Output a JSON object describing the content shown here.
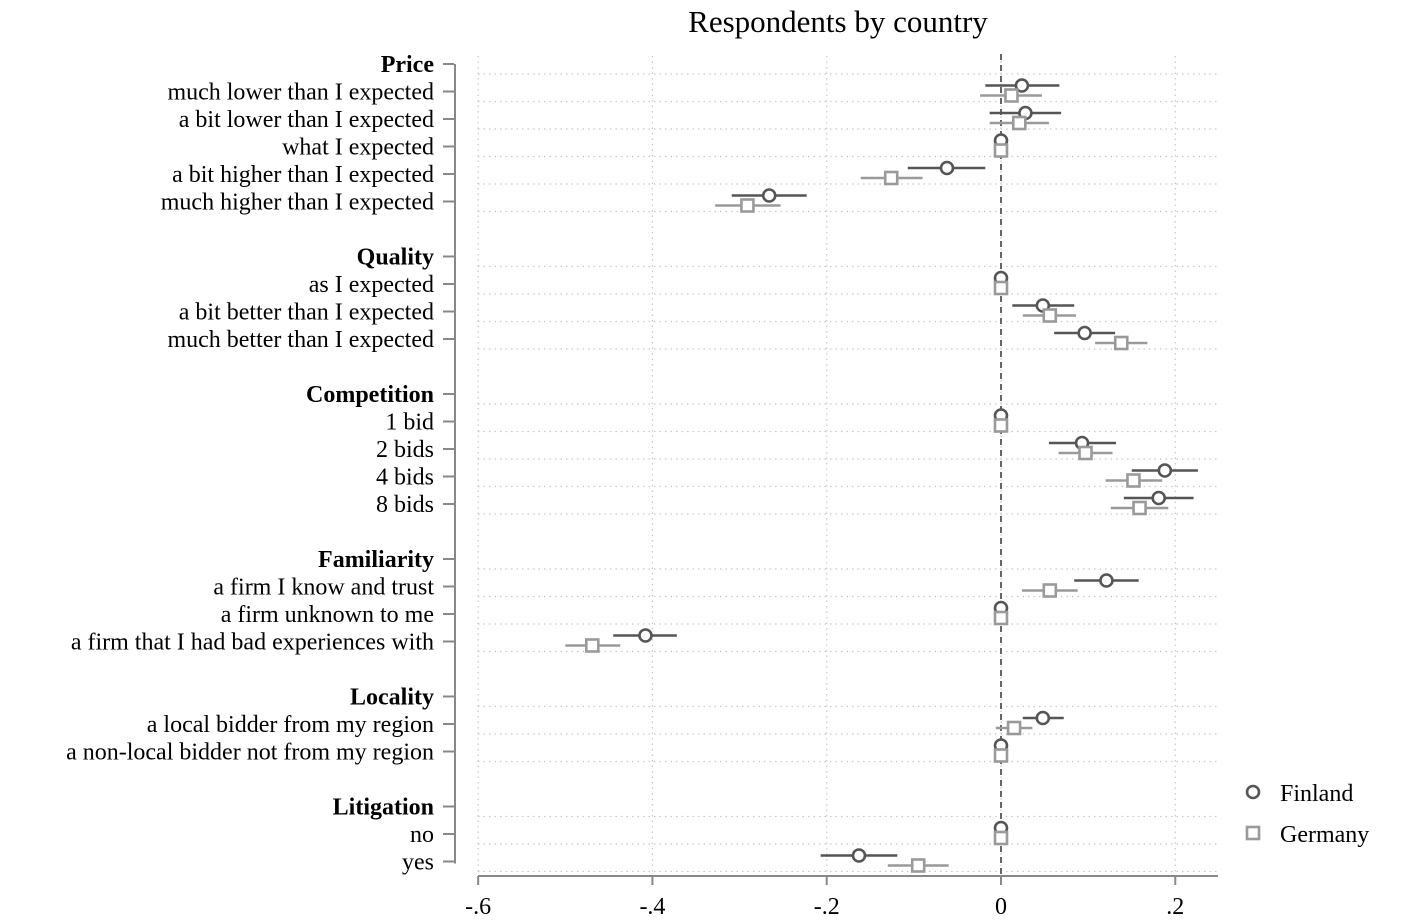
{
  "chart_data": {
    "type": "scatter",
    "title": "Respondents by country",
    "xlabel": "",
    "ylabel": "",
    "xlim": [
      -0.6,
      0.25
    ],
    "x_ticks": [
      -0.6,
      -0.4,
      -0.2,
      0,
      0.2
    ],
    "x_tick_labels": [
      "-.6",
      "-.4",
      "-.2",
      "0",
      ".2"
    ],
    "reference_line_x": 0,
    "grid": true,
    "legend_position": "right",
    "series": [
      {
        "name": "Finland",
        "marker": "circle",
        "color": "#555555"
      },
      {
        "name": "Germany",
        "marker": "square",
        "color": "#9a9a9a"
      }
    ],
    "groups": [
      {
        "label": "Price",
        "rows": [
          {
            "label": "much lower than I expected",
            "finland": {
              "est": 0.024,
              "lo": -0.018,
              "hi": 0.067
            },
            "germany": {
              "est": 0.012,
              "lo": -0.024,
              "hi": 0.047
            }
          },
          {
            "label": "a bit lower than I expected",
            "finland": {
              "est": 0.028,
              "lo": -0.013,
              "hi": 0.069
            },
            "germany": {
              "est": 0.021,
              "lo": -0.013,
              "hi": 0.055
            }
          },
          {
            "label": "what I expected",
            "finland": {
              "est": 0,
              "lo": 0,
              "hi": 0
            },
            "germany": {
              "est": 0,
              "lo": 0,
              "hi": 0
            }
          },
          {
            "label": "a bit higher than I expected",
            "finland": {
              "est": -0.062,
              "lo": -0.107,
              "hi": -0.018
            },
            "germany": {
              "est": -0.126,
              "lo": -0.161,
              "hi": -0.09
            }
          },
          {
            "label": "much higher than I expected",
            "finland": {
              "est": -0.266,
              "lo": -0.309,
              "hi": -0.223
            },
            "germany": {
              "est": -0.291,
              "lo": -0.328,
              "hi": -0.253
            }
          }
        ]
      },
      {
        "label": "Quality",
        "rows": [
          {
            "label": "as I expected",
            "finland": {
              "est": 0,
              "lo": 0,
              "hi": 0
            },
            "germany": {
              "est": 0,
              "lo": 0,
              "hi": 0
            }
          },
          {
            "label": "a bit better than I expected",
            "finland": {
              "est": 0.048,
              "lo": 0.013,
              "hi": 0.084
            },
            "germany": {
              "est": 0.056,
              "lo": 0.025,
              "hi": 0.086
            }
          },
          {
            "label": "much better than I expected",
            "finland": {
              "est": 0.096,
              "lo": 0.061,
              "hi": 0.131
            },
            "germany": {
              "est": 0.138,
              "lo": 0.108,
              "hi": 0.168
            }
          }
        ]
      },
      {
        "label": "Competition",
        "rows": [
          {
            "label": "1 bid",
            "finland": {
              "est": 0,
              "lo": 0,
              "hi": 0
            },
            "germany": {
              "est": 0,
              "lo": 0,
              "hi": 0
            }
          },
          {
            "label": "2 bids",
            "finland": {
              "est": 0.093,
              "lo": 0.055,
              "hi": 0.132
            },
            "germany": {
              "est": 0.097,
              "lo": 0.066,
              "hi": 0.128
            }
          },
          {
            "label": "4 bids",
            "finland": {
              "est": 0.188,
              "lo": 0.15,
              "hi": 0.226
            },
            "germany": {
              "est": 0.152,
              "lo": 0.12,
              "hi": 0.185
            }
          },
          {
            "label": "8 bids",
            "finland": {
              "est": 0.181,
              "lo": 0.141,
              "hi": 0.221
            },
            "germany": {
              "est": 0.159,
              "lo": 0.126,
              "hi": 0.192
            }
          }
        ]
      },
      {
        "label": "Familiarity",
        "rows": [
          {
            "label": "a firm I know and trust",
            "finland": {
              "est": 0.121,
              "lo": 0.084,
              "hi": 0.158
            },
            "germany": {
              "est": 0.056,
              "lo": 0.024,
              "hi": 0.088
            }
          },
          {
            "label": "a firm unknown to me",
            "finland": {
              "est": 0,
              "lo": 0,
              "hi": 0
            },
            "germany": {
              "est": 0,
              "lo": 0,
              "hi": 0
            }
          },
          {
            "label": "a firm that I had bad experiences with",
            "finland": {
              "est": -0.408,
              "lo": -0.445,
              "hi": -0.372
            },
            "germany": {
              "est": -0.469,
              "lo": -0.5,
              "hi": -0.437
            }
          }
        ]
      },
      {
        "label": "Locality",
        "rows": [
          {
            "label": "a local bidder from my region",
            "finland": {
              "est": 0.048,
              "lo": 0.025,
              "hi": 0.072
            },
            "germany": {
              "est": 0.015,
              "lo": -0.006,
              "hi": 0.036
            }
          },
          {
            "label": "a non-local bidder not from my region",
            "finland": {
              "est": 0,
              "lo": 0,
              "hi": 0
            },
            "germany": {
              "est": 0,
              "lo": 0,
              "hi": 0
            }
          }
        ]
      },
      {
        "label": "Litigation",
        "rows": [
          {
            "label": "no",
            "finland": {
              "est": 0,
              "lo": 0,
              "hi": 0
            },
            "germany": {
              "est": 0,
              "lo": 0,
              "hi": 0
            }
          },
          {
            "label": "yes",
            "finland": {
              "est": -0.163,
              "lo": -0.207,
              "hi": -0.119
            },
            "germany": {
              "est": -0.095,
              "lo": -0.13,
              "hi": -0.06
            }
          }
        ]
      }
    ]
  }
}
